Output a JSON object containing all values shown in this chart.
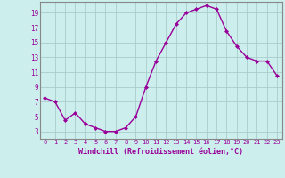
{
  "hours": [
    0,
    1,
    2,
    3,
    4,
    5,
    6,
    7,
    8,
    9,
    10,
    11,
    12,
    13,
    14,
    15,
    16,
    17,
    18,
    19,
    20,
    21,
    22,
    23
  ],
  "values": [
    7.5,
    7.0,
    4.5,
    5.5,
    4.0,
    3.5,
    3.0,
    3.0,
    3.5,
    5.0,
    9.0,
    12.5,
    15.0,
    17.5,
    19.0,
    19.5,
    20.0,
    19.5,
    16.5,
    14.5,
    13.0,
    12.5,
    12.5,
    10.5
  ],
  "line_color": "#990099",
  "marker": "D",
  "markersize": 2.0,
  "linewidth": 1.0,
  "bg_color": "#cceeed",
  "grid_color": "#aacccc",
  "xlabel": "Windchill (Refroidissement éolien,°C)",
  "tick_color": "#990099",
  "yticks": [
    3,
    5,
    7,
    9,
    11,
    13,
    15,
    17,
    19
  ],
  "ylim": [
    2.0,
    20.5
  ],
  "xlim": [
    -0.5,
    23.5
  ],
  "spine_color": "#888888"
}
